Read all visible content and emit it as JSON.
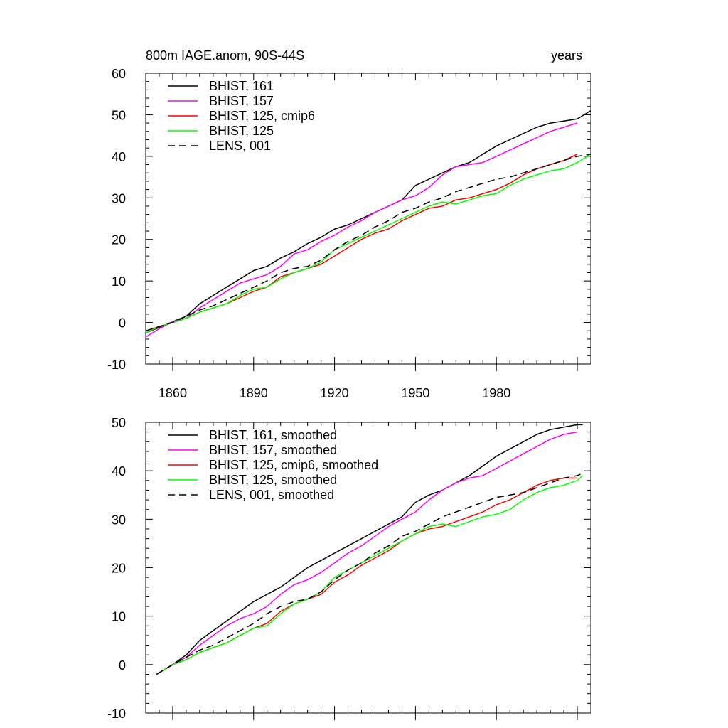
{
  "chart_data": [
    {
      "type": "line",
      "title": "800m IAGE.anom, 90S-44S",
      "subtitle": "years",
      "xlabel": "",
      "ylabel": "",
      "xlim": [
        1850,
        2015
      ],
      "ylim": [
        -10,
        60
      ],
      "xticks": [
        1860,
        1890,
        1920,
        1950,
        1980
      ],
      "yticks": [
        -10,
        0,
        10,
        20,
        30,
        40,
        50,
        60
      ],
      "grid": false,
      "legend_position": "top-left",
      "series": [
        {
          "name": "BHIST, 161",
          "color": "#000000",
          "dash": "solid",
          "x": [
            1850,
            1855,
            1860,
            1865,
            1870,
            1875,
            1880,
            1885,
            1890,
            1895,
            1900,
            1905,
            1910,
            1915,
            1920,
            1925,
            1930,
            1935,
            1940,
            1945,
            1950,
            1955,
            1960,
            1965,
            1970,
            1975,
            1980,
            1985,
            1990,
            1995,
            2000,
            2005,
            2010,
            2015
          ],
          "y": [
            -2.5,
            -1.2,
            0.2,
            1.5,
            4.5,
            6.5,
            8.5,
            10.5,
            12.5,
            13.5,
            15.5,
            17.0,
            19.0,
            20.5,
            22.5,
            23.5,
            25.0,
            26.5,
            28.0,
            29.5,
            33.0,
            34.5,
            36.0,
            37.5,
            38.5,
            40.5,
            42.5,
            44.0,
            45.5,
            47.0,
            48.0,
            48.5,
            49.0,
            51.0
          ]
        },
        {
          "name": "BHIST, 157",
          "color": "#ff00ff",
          "dash": "solid",
          "x": [
            1850,
            1855,
            1860,
            1865,
            1870,
            1875,
            1880,
            1885,
            1890,
            1895,
            1900,
            1905,
            1910,
            1915,
            1920,
            1925,
            1930,
            1935,
            1940,
            1945,
            1950,
            1955,
            1960,
            1965,
            1970,
            1975,
            1980,
            1985,
            1990,
            1995,
            2000,
            2005,
            2010
          ],
          "y": [
            -3.5,
            -1.5,
            0.2,
            1.0,
            3.5,
            5.5,
            7.5,
            9.5,
            10.5,
            11.5,
            13.5,
            16.5,
            17.5,
            19.5,
            21.0,
            23.0,
            24.5,
            26.5,
            28.0,
            29.5,
            30.5,
            32.5,
            35.5,
            37.5,
            38.0,
            38.5,
            40.0,
            41.5,
            43.0,
            44.5,
            46.0,
            47.0,
            48.0
          ]
        },
        {
          "name": "BHIST, 125, cmip6",
          "color": "#ff0000",
          "dash": "solid",
          "x": [
            1850,
            1855,
            1860,
            1865,
            1870,
            1875,
            1880,
            1885,
            1890,
            1895,
            1900,
            1905,
            1910,
            1915,
            1920,
            1925,
            1930,
            1935,
            1940,
            1945,
            1950,
            1955,
            1960,
            1965,
            1970,
            1975,
            1980,
            1985,
            1990,
            1995,
            2000,
            2005,
            2010
          ],
          "y": [
            -2.0,
            -1.0,
            0.0,
            1.0,
            2.5,
            3.5,
            4.5,
            6.0,
            7.5,
            8.5,
            11.0,
            12.0,
            13.0,
            14.0,
            16.0,
            18.0,
            20.0,
            21.5,
            22.5,
            24.5,
            26.0,
            27.5,
            28.0,
            29.5,
            30.0,
            31.0,
            32.0,
            33.5,
            35.5,
            37.0,
            38.0,
            39.0,
            40.5
          ]
        },
        {
          "name": "BHIST, 125",
          "color": "#00ff00",
          "dash": "solid",
          "x": [
            1850,
            1855,
            1860,
            1865,
            1870,
            1875,
            1880,
            1885,
            1890,
            1895,
            1900,
            1905,
            1910,
            1915,
            1920,
            1925,
            1930,
            1935,
            1940,
            1945,
            1950,
            1955,
            1960,
            1965,
            1970,
            1975,
            1980,
            1985,
            1990,
            1995,
            2000,
            2005,
            2010,
            2015
          ],
          "y": [
            -2.5,
            -1.0,
            0.0,
            1.0,
            2.5,
            3.5,
            4.5,
            6.5,
            8.0,
            8.5,
            10.5,
            12.0,
            13.0,
            14.5,
            17.5,
            19.0,
            20.5,
            22.0,
            23.5,
            25.0,
            26.5,
            28.0,
            29.0,
            28.5,
            29.5,
            30.5,
            31.0,
            33.0,
            34.5,
            35.5,
            36.5,
            37.0,
            38.5,
            40.5
          ]
        },
        {
          "name": "LENS, 001",
          "color": "#000000",
          "dash": "dashed",
          "x": [
            1850,
            1855,
            1860,
            1865,
            1870,
            1875,
            1880,
            1885,
            1890,
            1895,
            1900,
            1905,
            1910,
            1915,
            1920,
            1925,
            1930,
            1935,
            1940,
            1945,
            1950,
            1955,
            1960,
            1965,
            1970,
            1975,
            1980,
            1985,
            1990,
            1995,
            2000,
            2005,
            2010,
            2015
          ],
          "y": [
            -2.0,
            -1.0,
            0.0,
            1.5,
            3.0,
            4.0,
            5.5,
            7.0,
            8.5,
            10.0,
            12.0,
            13.0,
            13.5,
            15.0,
            17.5,
            19.5,
            21.0,
            23.0,
            24.5,
            26.5,
            27.5,
            29.0,
            30.0,
            31.5,
            32.5,
            33.5,
            34.5,
            35.0,
            36.0,
            37.0,
            38.0,
            39.0,
            40.0,
            40.5
          ]
        }
      ]
    },
    {
      "type": "line",
      "title": "",
      "xlabel": "",
      "ylabel": "",
      "xlim": [
        1850,
        2015
      ],
      "ylim": [
        -10,
        50
      ],
      "xticks": [
        1860,
        1890,
        1920,
        1950,
        1980
      ],
      "yticks": [
        -10,
        0,
        10,
        20,
        30,
        40,
        50
      ],
      "grid": false,
      "legend_position": "top-left",
      "series": [
        {
          "name": "BHIST, 161, smoothed",
          "color": "#000000",
          "dash": "solid",
          "x": [
            1854,
            1860,
            1865,
            1870,
            1875,
            1880,
            1885,
            1890,
            1895,
            1900,
            1905,
            1910,
            1915,
            1920,
            1925,
            1930,
            1935,
            1940,
            1945,
            1950,
            1955,
            1960,
            1965,
            1970,
            1975,
            1980,
            1985,
            1990,
            1995,
            2000,
            2005,
            2010,
            2012
          ],
          "y": [
            -2.0,
            0.0,
            2.0,
            5.0,
            7.0,
            9.0,
            11.0,
            13.0,
            14.5,
            16.0,
            18.0,
            20.0,
            21.5,
            23.0,
            24.5,
            26.0,
            27.5,
            29.0,
            30.5,
            33.5,
            35.0,
            36.0,
            37.5,
            39.0,
            41.0,
            43.0,
            44.5,
            46.0,
            47.5,
            48.5,
            49.0,
            49.5,
            49.5
          ]
        },
        {
          "name": "BHIST, 157, smoothed",
          "color": "#ff00ff",
          "dash": "solid",
          "x": [
            1854,
            1860,
            1865,
            1870,
            1875,
            1880,
            1885,
            1890,
            1895,
            1900,
            1905,
            1910,
            1915,
            1920,
            1925,
            1930,
            1935,
            1940,
            1945,
            1950,
            1955,
            1960,
            1965,
            1970,
            1975,
            1980,
            1985,
            1990,
            1995,
            2000,
            2005,
            2010
          ],
          "y": [
            -2.0,
            0.0,
            1.5,
            4.0,
            6.0,
            8.0,
            9.5,
            10.5,
            12.0,
            14.5,
            16.5,
            17.5,
            19.0,
            21.0,
            23.0,
            24.5,
            26.5,
            28.5,
            30.0,
            31.5,
            34.0,
            36.0,
            37.5,
            38.5,
            39.0,
            40.5,
            42.0,
            43.5,
            45.0,
            46.5,
            47.5,
            48.0
          ]
        },
        {
          "name": "BHIST, 125, cmip6, smoothed",
          "color": "#ff0000",
          "dash": "solid",
          "x": [
            1854,
            1860,
            1865,
            1870,
            1875,
            1880,
            1885,
            1890,
            1895,
            1900,
            1905,
            1910,
            1915,
            1920,
            1925,
            1930,
            1935,
            1940,
            1945,
            1950,
            1955,
            1960,
            1965,
            1970,
            1975,
            1980,
            1985,
            1990,
            1995,
            2000,
            2005,
            2010
          ],
          "y": [
            -2.0,
            0.0,
            1.0,
            2.5,
            3.5,
            4.5,
            6.0,
            7.5,
            8.5,
            11.0,
            12.5,
            13.5,
            14.5,
            17.0,
            18.5,
            20.5,
            22.0,
            23.5,
            25.5,
            27.0,
            28.0,
            28.5,
            29.5,
            30.5,
            31.5,
            33.0,
            34.0,
            35.5,
            37.0,
            38.0,
            38.5,
            38.5
          ]
        },
        {
          "name": "BHIST, 125, smoothed",
          "color": "#00ff00",
          "dash": "solid",
          "x": [
            1854,
            1860,
            1865,
            1870,
            1875,
            1880,
            1885,
            1890,
            1895,
            1900,
            1905,
            1910,
            1915,
            1920,
            1925,
            1930,
            1935,
            1940,
            1945,
            1950,
            1955,
            1960,
            1965,
            1970,
            1975,
            1980,
            1985,
            1990,
            1995,
            2000,
            2005,
            2010,
            2012
          ],
          "y": [
            -2.0,
            0.0,
            1.0,
            2.5,
            3.5,
            4.5,
            6.0,
            7.5,
            8.0,
            10.5,
            12.5,
            13.5,
            15.0,
            18.0,
            19.5,
            21.0,
            22.5,
            24.0,
            25.5,
            27.0,
            28.5,
            29.0,
            28.5,
            29.5,
            30.5,
            31.0,
            32.0,
            34.0,
            35.5,
            36.5,
            37.0,
            38.0,
            39.0
          ]
        },
        {
          "name": "LENS, 001, smoothed",
          "color": "#000000",
          "dash": "dashed",
          "x": [
            1854,
            1860,
            1865,
            1870,
            1875,
            1880,
            1885,
            1890,
            1895,
            1900,
            1905,
            1910,
            1915,
            1920,
            1925,
            1930,
            1935,
            1940,
            1945,
            1950,
            1955,
            1960,
            1965,
            1970,
            1975,
            1980,
            1985,
            1990,
            1995,
            2000,
            2005,
            2010,
            2012
          ],
          "y": [
            -2.0,
            0.0,
            1.5,
            3.0,
            4.0,
            5.5,
            7.0,
            8.5,
            10.5,
            12.0,
            13.0,
            13.5,
            15.0,
            17.5,
            19.5,
            21.0,
            23.0,
            24.5,
            26.5,
            27.5,
            29.0,
            30.5,
            31.5,
            32.5,
            33.5,
            34.5,
            35.0,
            35.5,
            36.5,
            37.5,
            38.5,
            39.0,
            39.5
          ]
        }
      ]
    }
  ]
}
